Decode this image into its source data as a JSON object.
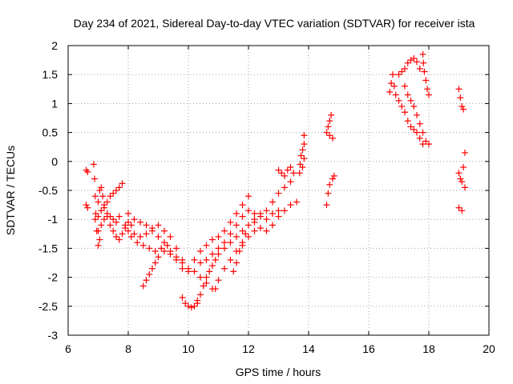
{
  "chart_data": {
    "type": "scatter",
    "title": "Day 234 of 2021, Sidereal Day-to-day VTEC variation (SDTVAR) for receiver ista",
    "xlabel": "GPS time / hours",
    "ylabel": "SDTVAR / TECUs",
    "xlim": [
      6,
      20
    ],
    "ylim": [
      -3,
      2
    ],
    "xticks": [
      "6",
      "8",
      "10",
      "12",
      "14",
      "16",
      "18",
      "20"
    ],
    "yticks": [
      "-3",
      "-2.5",
      "-2",
      "-1.5",
      "-1",
      "-0.5",
      "0",
      "0.5",
      "1",
      "1.5",
      "2"
    ],
    "grid": true,
    "marker": "+",
    "color": "#ff0000",
    "series": [
      {
        "points": [
          [
            6.6,
            -0.15
          ],
          [
            6.65,
            -0.18
          ],
          [
            6.6,
            -0.75
          ],
          [
            6.65,
            -0.8
          ],
          [
            6.85,
            -0.05
          ],
          [
            6.88,
            -0.3
          ],
          [
            6.9,
            -0.6
          ],
          [
            6.92,
            -0.9
          ],
          [
            6.95,
            -1.2
          ],
          [
            7.0,
            -1.45
          ],
          [
            7.05,
            -1.35
          ],
          [
            6.9,
            -1.0
          ],
          [
            7.0,
            -0.7
          ],
          [
            7.05,
            -0.5
          ],
          [
            7.1,
            -0.45
          ],
          [
            7.15,
            -0.6
          ],
          [
            7.2,
            -0.8
          ],
          [
            7.3,
            -0.95
          ],
          [
            7.4,
            -1.1
          ],
          [
            7.5,
            -1.2
          ],
          [
            7.6,
            -1.3
          ],
          [
            7.7,
            -1.35
          ],
          [
            7.8,
            -1.25
          ],
          [
            7.9,
            -1.1
          ],
          [
            8.0,
            -1.05
          ],
          [
            8.1,
            -1.1
          ],
          [
            7.0,
            -0.95
          ],
          [
            7.1,
            -0.85
          ],
          [
            7.2,
            -0.75
          ],
          [
            7.3,
            -0.7
          ],
          [
            7.4,
            -0.6
          ],
          [
            7.5,
            -0.55
          ],
          [
            7.6,
            -0.5
          ],
          [
            7.7,
            -0.45
          ],
          [
            7.8,
            -0.38
          ],
          [
            7.0,
            -1.2
          ],
          [
            7.1,
            -1.1
          ],
          [
            7.2,
            -1.0
          ],
          [
            7.3,
            -0.9
          ],
          [
            7.4,
            -0.95
          ],
          [
            7.5,
            -1.0
          ],
          [
            7.6,
            -1.05
          ],
          [
            7.7,
            -0.95
          ],
          [
            7.9,
            -1.15
          ],
          [
            8.1,
            -1.3
          ],
          [
            8.3,
            -1.4
          ],
          [
            8.5,
            -1.45
          ],
          [
            8.7,
            -1.5
          ],
          [
            8.9,
            -1.55
          ],
          [
            9.1,
            -1.5
          ],
          [
            9.3,
            -1.45
          ],
          [
            8.0,
            -0.9
          ],
          [
            8.2,
            -1.0
          ],
          [
            8.4,
            -1.05
          ],
          [
            8.6,
            -1.1
          ],
          [
            8.8,
            -1.2
          ],
          [
            9.0,
            -1.3
          ],
          [
            9.2,
            -1.4
          ],
          [
            9.4,
            -1.55
          ],
          [
            9.6,
            -1.7
          ],
          [
            9.8,
            -1.85
          ],
          [
            10.0,
            -1.9
          ],
          [
            8.0,
            -1.2
          ],
          [
            8.2,
            -1.25
          ],
          [
            8.4,
            -1.3
          ],
          [
            8.6,
            -1.25
          ],
          [
            8.8,
            -1.15
          ],
          [
            9.0,
            -1.1
          ],
          [
            9.2,
            -1.2
          ],
          [
            9.4,
            -1.3
          ],
          [
            9.6,
            -1.5
          ],
          [
            9.8,
            -1.75
          ],
          [
            8.5,
            -2.15
          ],
          [
            8.6,
            -2.05
          ],
          [
            8.7,
            -1.95
          ],
          [
            8.8,
            -1.85
          ],
          [
            8.9,
            -1.75
          ],
          [
            9.0,
            -1.65
          ],
          [
            9.2,
            -1.55
          ],
          [
            9.4,
            -1.6
          ],
          [
            9.6,
            -1.65
          ],
          [
            9.8,
            -1.7
          ],
          [
            9.8,
            -2.35
          ],
          [
            9.9,
            -2.45
          ],
          [
            10.0,
            -2.5
          ],
          [
            10.1,
            -2.52
          ],
          [
            10.2,
            -2.5
          ],
          [
            10.3,
            -2.45
          ],
          [
            10.3,
            -2.4
          ],
          [
            10.4,
            -2.3
          ],
          [
            10.5,
            -2.15
          ],
          [
            10.6,
            -2.0
          ],
          [
            10.7,
            -1.9
          ],
          [
            10.8,
            -1.8
          ],
          [
            10.9,
            -1.7
          ],
          [
            11.0,
            -1.6
          ],
          [
            11.2,
            -1.5
          ],
          [
            11.4,
            -1.4
          ],
          [
            11.6,
            -1.3
          ],
          [
            11.8,
            -1.2
          ],
          [
            10.2,
            -1.9
          ],
          [
            10.4,
            -2.0
          ],
          [
            10.6,
            -2.1
          ],
          [
            10.8,
            -2.2
          ],
          [
            10.9,
            -2.2
          ],
          [
            11.0,
            -2.05
          ],
          [
            11.2,
            -1.85
          ],
          [
            11.4,
            -1.7
          ],
          [
            11.6,
            -1.55
          ],
          [
            11.8,
            -1.45
          ],
          [
            12.0,
            -1.3
          ],
          [
            12.2,
            -1.2
          ],
          [
            10.0,
            -1.85
          ],
          [
            10.2,
            -1.7
          ],
          [
            10.4,
            -1.55
          ],
          [
            10.6,
            -1.45
          ],
          [
            10.8,
            -1.35
          ],
          [
            11.0,
            -1.3
          ],
          [
            11.2,
            -1.2
          ],
          [
            11.4,
            -1.05
          ],
          [
            11.6,
            -0.9
          ],
          [
            11.8,
            -0.75
          ],
          [
            12.0,
            -0.6
          ],
          [
            10.4,
            -1.75
          ],
          [
            10.6,
            -1.7
          ],
          [
            10.8,
            -1.6
          ],
          [
            11.0,
            -1.5
          ],
          [
            11.2,
            -1.4
          ],
          [
            11.4,
            -1.25
          ],
          [
            11.6,
            -1.1
          ],
          [
            11.8,
            -0.95
          ],
          [
            12.0,
            -0.85
          ],
          [
            12.2,
            -0.9
          ],
          [
            12.4,
            -0.95
          ],
          [
            12.6,
            -1.0
          ],
          [
            12.8,
            -0.9
          ],
          [
            13.0,
            -0.85
          ],
          [
            11.5,
            -1.9
          ],
          [
            11.6,
            -1.75
          ],
          [
            11.7,
            -1.55
          ],
          [
            11.8,
            -1.4
          ],
          [
            11.9,
            -1.25
          ],
          [
            12.0,
            -1.1
          ],
          [
            12.2,
            -1.0
          ],
          [
            12.4,
            -0.9
          ],
          [
            12.6,
            -0.85
          ],
          [
            12.8,
            -0.7
          ],
          [
            13.0,
            -0.55
          ],
          [
            13.2,
            -0.45
          ],
          [
            13.4,
            -0.35
          ],
          [
            12.2,
            -1.05
          ],
          [
            12.4,
            -1.15
          ],
          [
            12.6,
            -1.2
          ],
          [
            12.8,
            -1.1
          ],
          [
            13.0,
            -0.95
          ],
          [
            13.2,
            -0.85
          ],
          [
            13.4,
            -0.75
          ],
          [
            13.6,
            -0.7
          ],
          [
            13.0,
            -0.15
          ],
          [
            13.1,
            -0.2
          ],
          [
            13.2,
            -0.25
          ],
          [
            13.3,
            -0.15
          ],
          [
            13.4,
            -0.1
          ],
          [
            13.5,
            -0.2
          ],
          [
            13.7,
            -0.2
          ],
          [
            13.72,
            -0.05
          ],
          [
            13.75,
            0.1
          ],
          [
            13.8,
            0.2
          ],
          [
            13.85,
            0.3
          ],
          [
            13.85,
            0.45
          ],
          [
            13.8,
            -0.1
          ],
          [
            13.85,
            0.05
          ],
          [
            14.6,
            0.5
          ],
          [
            14.65,
            0.6
          ],
          [
            14.7,
            0.7
          ],
          [
            14.75,
            0.8
          ],
          [
            14.7,
            0.45
          ],
          [
            14.8,
            0.4
          ],
          [
            14.6,
            -0.75
          ],
          [
            14.65,
            -0.55
          ],
          [
            14.7,
            -0.4
          ],
          [
            14.8,
            -0.3
          ],
          [
            14.85,
            -0.25
          ],
          [
            16.7,
            1.2
          ],
          [
            16.75,
            1.35
          ],
          [
            16.8,
            1.5
          ],
          [
            16.85,
            1.3
          ],
          [
            16.9,
            1.15
          ],
          [
            17.0,
            1.05
          ],
          [
            17.1,
            0.95
          ],
          [
            17.2,
            0.85
          ],
          [
            17.3,
            0.7
          ],
          [
            17.4,
            0.6
          ],
          [
            17.5,
            0.55
          ],
          [
            17.6,
            0.5
          ],
          [
            17.7,
            0.4
          ],
          [
            17.8,
            0.3
          ],
          [
            17.0,
            1.5
          ],
          [
            17.1,
            1.55
          ],
          [
            17.2,
            1.6
          ],
          [
            17.3,
            1.7
          ],
          [
            17.4,
            1.75
          ],
          [
            17.5,
            1.78
          ],
          [
            17.6,
            1.72
          ],
          [
            17.7,
            1.6
          ],
          [
            17.8,
            1.85
          ],
          [
            17.82,
            1.7
          ],
          [
            17.85,
            1.55
          ],
          [
            17.9,
            1.4
          ],
          [
            17.95,
            1.25
          ],
          [
            18.0,
            1.15
          ],
          [
            17.2,
            1.3
          ],
          [
            17.3,
            1.15
          ],
          [
            17.4,
            1.05
          ],
          [
            17.5,
            0.95
          ],
          [
            17.6,
            0.8
          ],
          [
            17.7,
            0.65
          ],
          [
            17.8,
            0.5
          ],
          [
            17.9,
            0.35
          ],
          [
            18.0,
            0.3
          ],
          [
            19.0,
            1.25
          ],
          [
            19.05,
            1.1
          ],
          [
            19.1,
            0.95
          ],
          [
            19.15,
            0.9
          ],
          [
            19.0,
            -0.2
          ],
          [
            19.05,
            -0.3
          ],
          [
            19.1,
            -0.35
          ],
          [
            19.15,
            -0.1
          ],
          [
            19.2,
            0.15
          ],
          [
            19.2,
            -0.45
          ],
          [
            19.0,
            -0.8
          ],
          [
            19.1,
            -0.85
          ]
        ]
      }
    ]
  }
}
